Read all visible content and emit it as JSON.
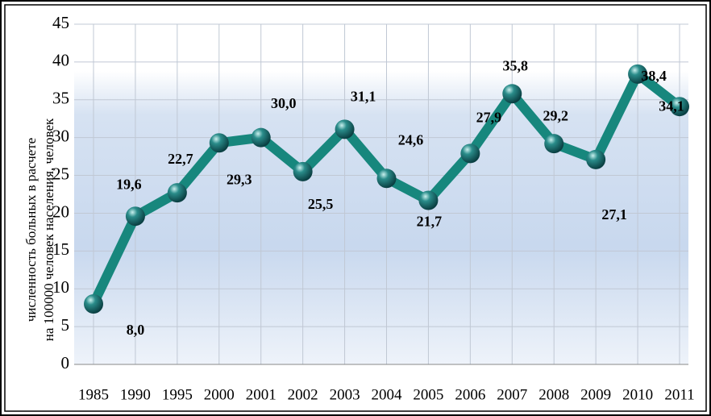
{
  "chart_data": {
    "type": "line",
    "y_axis_label": [
      "численность больных в расчете",
      "на 100000 человек населения, человек"
    ],
    "categories": [
      "1985",
      "1990",
      "1995",
      "2000",
      "2001",
      "2002",
      "2003",
      "2004",
      "2005",
      "2006",
      "2007",
      "2008",
      "2009",
      "2010",
      "2011"
    ],
    "series": [
      {
        "name": null,
        "color": "#17877d",
        "values": [
          8.0,
          19.6,
          22.7,
          29.3,
          30.0,
          25.5,
          31.1,
          24.6,
          21.7,
          27.9,
          35.8,
          29.2,
          27.1,
          38.4,
          34.1
        ],
        "value_labels": [
          "8,0",
          "19,6",
          "22,7",
          "29,3",
          "30,0",
          "25,5",
          "31,1",
          "24,6",
          "21,7",
          "27,9",
          "35,8",
          "29,2",
          "27,1",
          "38,4",
          "34,1"
        ]
      }
    ],
    "ylim": [
      0,
      45
    ],
    "yticks": [
      0,
      5,
      10,
      15,
      20,
      25,
      30,
      35,
      40,
      45
    ],
    "grid": true
  }
}
